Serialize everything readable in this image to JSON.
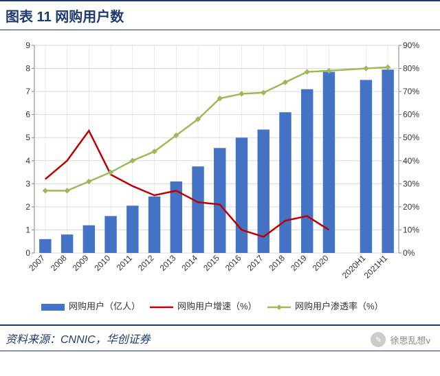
{
  "title": "图表 11   网购用户数",
  "source": "资料来源：CNNIC，华创证券",
  "watermark": "徐思乱想v",
  "chart": {
    "type": "combo-bar-line-dualaxis",
    "background": "#ffffff",
    "plot_border_color": "#7f7f7f",
    "grid_color": "#d9d9d9",
    "categories": [
      "2007",
      "2008",
      "2009",
      "2010",
      "2011",
      "2012",
      "2013",
      "2014",
      "2015",
      "2016",
      "2017",
      "2018",
      "2019",
      "2020",
      "2020H1",
      "2021H1"
    ],
    "x_rotation_deg": -45,
    "gap_after_index": 13,
    "left_axis": {
      "min": 0,
      "max": 9,
      "step": 1,
      "label": ""
    },
    "right_axis": {
      "min": 0,
      "max": 90,
      "step": 10,
      "label": "",
      "suffix": "%"
    },
    "series": {
      "bars": {
        "name": "网购用户（亿人）",
        "color": "#4472c4",
        "width": 0.55,
        "axis": "left",
        "values": [
          0.6,
          0.8,
          1.2,
          1.6,
          2.05,
          2.45,
          3.1,
          3.75,
          4.55,
          5.0,
          5.35,
          6.1,
          7.1,
          7.85,
          7.5,
          7.95
        ],
        "skip_nulls": false
      },
      "growth": {
        "name": "网购用户增速（%）",
        "color": "#c00000",
        "marker": "none",
        "line_width": 2.5,
        "axis": "right",
        "values": [
          32,
          40,
          53,
          34,
          29,
          25,
          27,
          22,
          21,
          10,
          7,
          14,
          16,
          10,
          null,
          null
        ]
      },
      "penetration": {
        "name": "网购用户渗透率（%）",
        "color": "#9bbb59",
        "marker": "diamond",
        "marker_size": 7,
        "line_width": 2.5,
        "axis": "right",
        "values": [
          27,
          27,
          31,
          35,
          40,
          44,
          51,
          58,
          67,
          69,
          69.5,
          74,
          78.5,
          79,
          80,
          80.5
        ]
      }
    },
    "legend": {
      "position": "bottom",
      "font_size": 13,
      "text_color": "#333333"
    },
    "font_size_ticks": 12
  }
}
